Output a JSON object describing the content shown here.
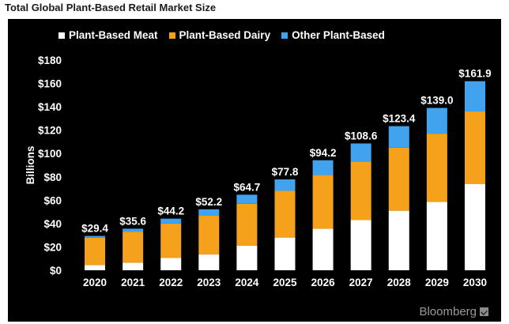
{
  "page": {
    "title": "Total Global Plant-Based Retail Market Size",
    "brand": "Bloomberg"
  },
  "colors": {
    "background": "#000000",
    "meat": "#ffffff",
    "dairy": "#f5a11c",
    "other": "#41a3ee",
    "text": "#ffffff"
  },
  "chart_data": {
    "type": "bar",
    "stacked": true,
    "title": "Total Global Plant-Based Retail Market Size",
    "xlabel": "",
    "ylabel": "Billions",
    "ylim": [
      0,
      180
    ],
    "yticks": [
      0,
      20,
      40,
      60,
      80,
      100,
      120,
      140,
      160,
      180
    ],
    "ytick_labels": [
      "$0",
      "$20",
      "$40",
      "$60",
      "$80",
      "$100",
      "$120",
      "$140",
      "$160",
      "$180"
    ],
    "grid": false,
    "legend_position": "top",
    "categories": [
      "2020",
      "2021",
      "2022",
      "2023",
      "2024",
      "2025",
      "2026",
      "2027",
      "2028",
      "2029",
      "2030"
    ],
    "series": [
      {
        "name": "Plant-Based Meat",
        "color": "#ffffff",
        "values": [
          4.5,
          6.5,
          10.5,
          13.5,
          21,
          28,
          35.5,
          43,
          51,
          58.5,
          74
        ]
      },
      {
        "name": "Plant-Based Dairy",
        "color": "#f5a11c",
        "values": [
          23.4,
          26.6,
          29.5,
          33.2,
          36,
          40,
          46,
          50,
          54,
          58.5,
          62
        ]
      },
      {
        "name": "Other Plant-Based",
        "color": "#41a3ee",
        "values": [
          1.5,
          2.5,
          4.2,
          5.5,
          7.7,
          9.8,
          12.7,
          15.6,
          18.4,
          22,
          25.9
        ]
      }
    ],
    "totals": [
      29.4,
      35.6,
      44.2,
      52.2,
      64.7,
      77.8,
      94.2,
      108.6,
      123.4,
      139.0,
      161.9
    ],
    "total_labels": [
      "$29.4",
      "$35.6",
      "$44.2",
      "$52.2",
      "$64.7",
      "$77.8",
      "$94.2",
      "$108.6",
      "$123.4",
      "$139.0",
      "$161.9"
    ]
  }
}
